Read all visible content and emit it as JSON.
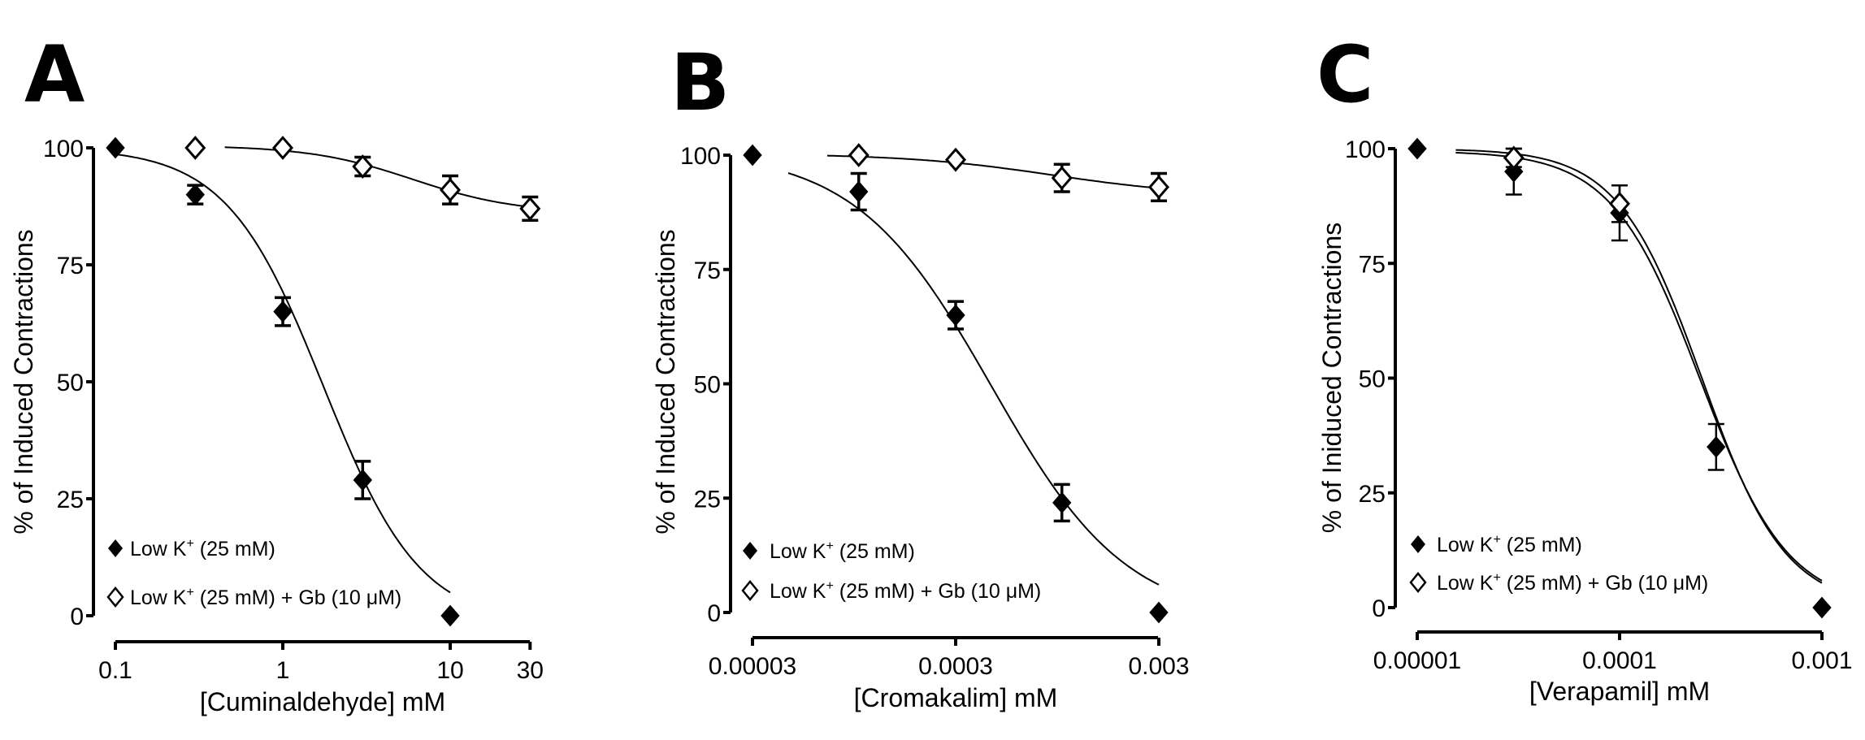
{
  "colors": {
    "ink": "#000000",
    "background": "#ffffff"
  },
  "chart_data": [
    {
      "type": "scatter",
      "panel": "A",
      "title": "",
      "xlabel": "[Cuminaldehyde] mM",
      "ylabel": "% of Induced Contractions",
      "xscale": "log",
      "xlim": [
        0.1,
        30
      ],
      "ylim": [
        0,
        100
      ],
      "xticks": [
        0.1,
        1,
        10,
        30
      ],
      "xtick_labels": [
        "0.1",
        "1",
        "10",
        "30"
      ],
      "yticks": [
        0,
        25,
        50,
        75,
        100
      ],
      "ytick_labels": [
        "0",
        "25",
        "50",
        "75",
        "100"
      ],
      "grid": false,
      "legend_position": "bottom-left",
      "series": [
        {
          "name": "Low K+ (25 mM)",
          "label_main": "Low  K",
          "label_sup": "+",
          "label_tail": " (25 mM)",
          "marker": "filled-diamond",
          "x": [
            0.1,
            0.3,
            1,
            3,
            10
          ],
          "y": [
            100,
            90,
            65,
            29,
            0
          ],
          "err": [
            0,
            2,
            3,
            4,
            0
          ]
        },
        {
          "name": "Low K+ (25 mM) + Gb (10 µM)",
          "label_main": "Low  K",
          "label_sup": "+",
          "label_tail": " (25 mM) + Gb (10 μM)",
          "marker": "open-diamond",
          "x": [
            0.3,
            1,
            3,
            10,
            30
          ],
          "y": [
            100,
            100,
            96,
            91,
            87
          ],
          "err": [
            0,
            0,
            2,
            3,
            2.5
          ]
        }
      ]
    },
    {
      "type": "scatter",
      "panel": "B",
      "title": "",
      "xlabel": "[Cromakalim] mM",
      "ylabel": "% of Induced Contractions",
      "xscale": "log",
      "xlim": [
        3e-05,
        0.003
      ],
      "ylim": [
        0,
        100
      ],
      "xticks": [
        3e-05,
        0.0003,
        0.003
      ],
      "xtick_labels": [
        "0.00003",
        "0.0003",
        "0.003"
      ],
      "yticks": [
        0,
        25,
        50,
        75,
        100
      ],
      "ytick_labels": [
        "0",
        "25",
        "50",
        "75",
        "100"
      ],
      "grid": false,
      "legend_position": "bottom-left",
      "series": [
        {
          "name": "Low K+ (25 mM)",
          "label_main": "Low  K",
          "label_sup": "+",
          "label_tail": " (25 mM)",
          "marker": "filled-diamond",
          "x": [
            3e-05,
            0.0001,
            0.0003,
            0.001,
            0.003
          ],
          "y": [
            100,
            92,
            65,
            24,
            0
          ],
          "err": [
            0,
            4,
            3,
            4,
            0
          ]
        },
        {
          "name": "Low K+ (25 mM) + Gb (10 µM)",
          "label_main": "Low  K",
          "label_sup": "+",
          "label_tail": " (25 mM) + Gb (10 μM)",
          "marker": "open-diamond",
          "x": [
            0.0001,
            0.0003,
            0.001,
            0.003
          ],
          "y": [
            100,
            99,
            95,
            93
          ],
          "err": [
            0,
            0,
            3,
            3
          ]
        }
      ]
    },
    {
      "type": "scatter",
      "panel": "C",
      "title": "",
      "xlabel": "[Verapamil] mM",
      "ylabel": "% of Iniduced Contractions",
      "xscale": "log",
      "xlim": [
        1e-05,
        0.001
      ],
      "ylim": [
        0,
        100
      ],
      "xticks": [
        1e-05,
        0.0001,
        0.001
      ],
      "xtick_labels": [
        "0.00001",
        "0.0001",
        "0.001"
      ],
      "yticks": [
        0,
        25,
        50,
        75,
        100
      ],
      "ytick_labels": [
        "0",
        "25",
        "50",
        "75",
        "100"
      ],
      "grid": false,
      "legend_position": "bottom-left",
      "series": [
        {
          "name": "Low K+ (25 mM)",
          "label_main": "Low K",
          "label_sup": "+",
          "label_tail": " (25 mM)",
          "marker": "filled-diamond",
          "x": [
            1e-05,
            3e-05,
            0.0001,
            0.0003,
            0.001
          ],
          "y": [
            100,
            95,
            86,
            35,
            0
          ],
          "err": [
            0,
            5,
            6,
            5,
            0
          ]
        },
        {
          "name": "Low K+ (25 mM) + Gb (10 µM)",
          "label_main": "Low K",
          "label_sup": "+",
          "label_tail": " (25 mM) + Gb (10 μM)",
          "marker": "open-diamond",
          "x": [
            3e-05,
            0.0001
          ],
          "y": [
            98,
            88
          ],
          "err": [
            2,
            4
          ]
        }
      ]
    }
  ],
  "panels": [
    {
      "letter": "A"
    },
    {
      "letter": "B"
    },
    {
      "letter": "C"
    }
  ]
}
